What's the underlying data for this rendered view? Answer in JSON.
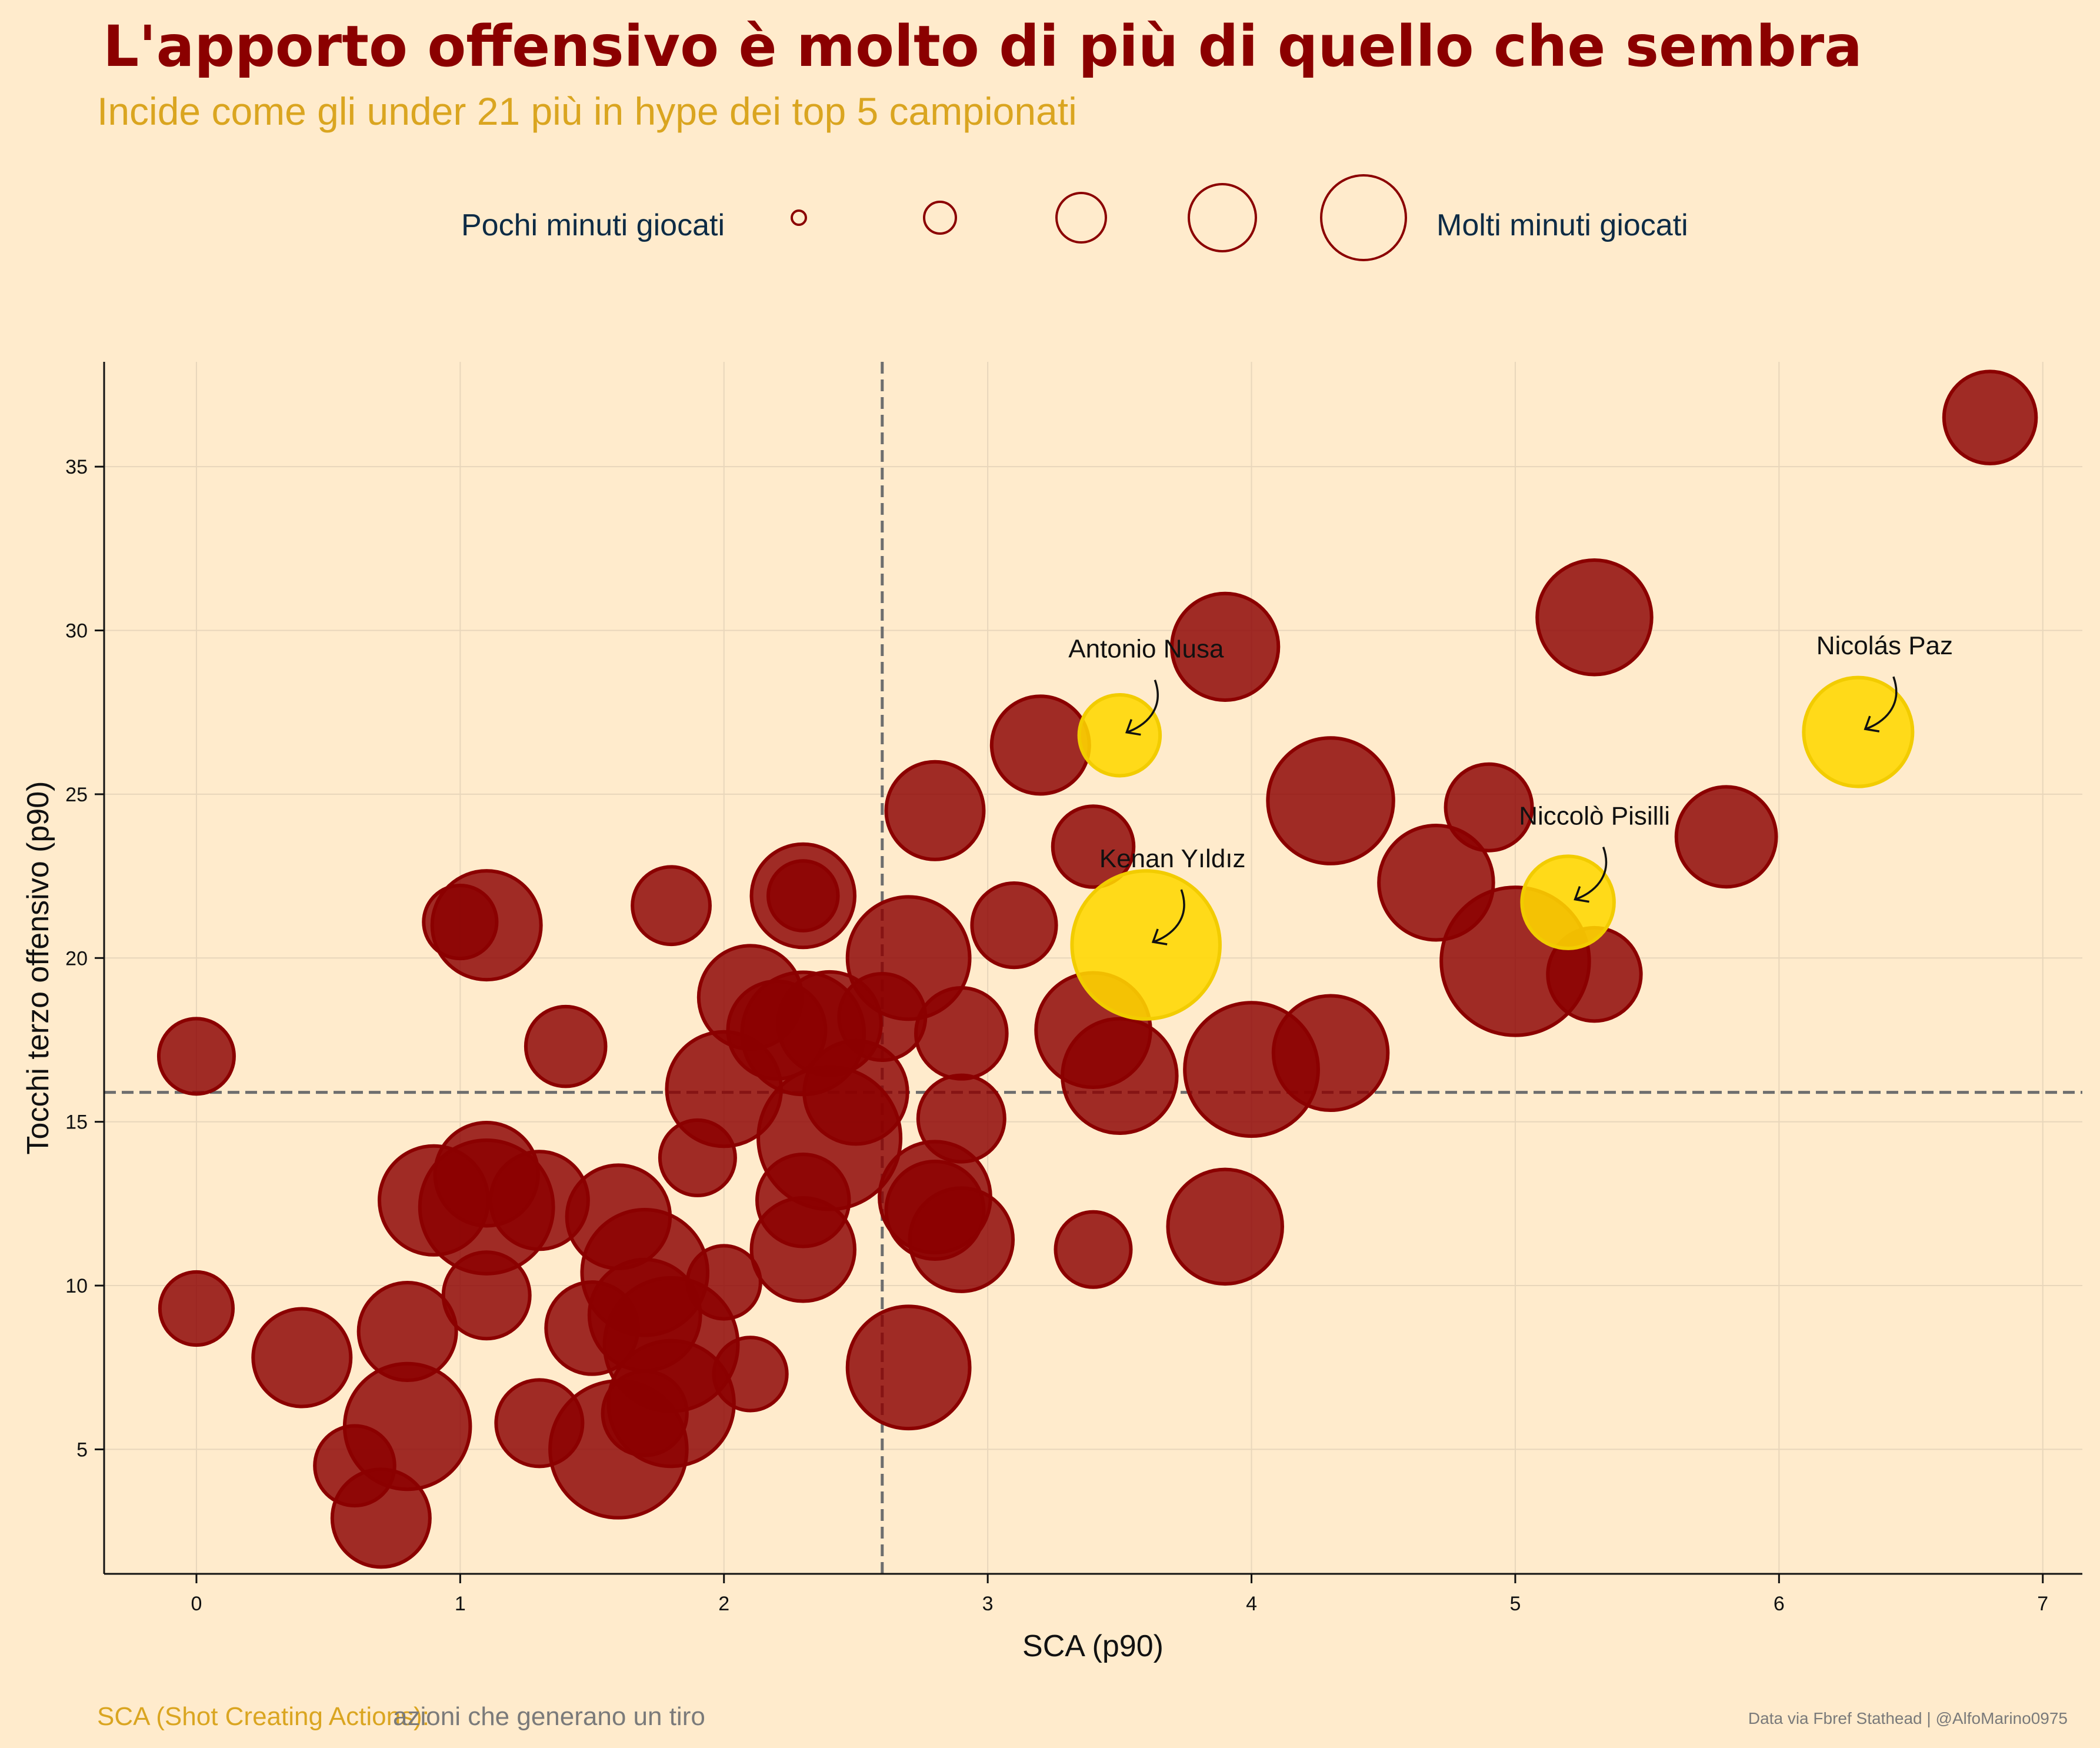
{
  "header": {
    "title": "L'apporto offensivo è molto di più di quello che sembra",
    "subtitle": "Incide come gli under 21 più in hype dei top 5 campionati"
  },
  "legend": {
    "left_label": "Pochi minuti giocati",
    "right_label": "Molti minuti giocati",
    "steps": 5,
    "circle_color": "#8b0000"
  },
  "footer": {
    "note_key": "SCA (Shot Creating Actions):",
    "note_value": "azioni che generano un tiro",
    "credit": "Data via Fbref Stathead | @AlfoMarino0975"
  },
  "colors": {
    "background": "#ffebcc",
    "bubble": "#8b0000",
    "highlight": "#ffd700",
    "reference_line": "#6e6e6e"
  },
  "chart_data": {
    "type": "scatter",
    "xlabel": "SCA (p90)",
    "ylabel": "Tocchi terzo offensivo (p90)",
    "xlim": [
      -0.35,
      7.15
    ],
    "ylim": [
      1.2,
      38.2
    ],
    "xticks": [
      0,
      1,
      2,
      3,
      4,
      5,
      6,
      7
    ],
    "yticks": [
      5,
      10,
      15,
      20,
      25,
      30,
      35
    ],
    "grid": true,
    "reference_lines": {
      "x": 2.6,
      "y": 15.9
    },
    "size_note": "s = relative minutes played (0-1)",
    "points": [
      {
        "x": 6.8,
        "y": 36.5,
        "s": 0.35
      },
      {
        "x": 5.3,
        "y": 30.4,
        "s": 0.55
      },
      {
        "x": 3.9,
        "y": 29.5,
        "s": 0.48
      },
      {
        "x": 3.2,
        "y": 26.5,
        "s": 0.4
      },
      {
        "x": 4.3,
        "y": 24.8,
        "s": 0.65
      },
      {
        "x": 4.9,
        "y": 24.6,
        "s": 0.3
      },
      {
        "x": 5.8,
        "y": 23.7,
        "s": 0.42
      },
      {
        "x": 2.8,
        "y": 24.5,
        "s": 0.4
      },
      {
        "x": 3.4,
        "y": 23.4,
        "s": 0.25
      },
      {
        "x": 4.7,
        "y": 22.3,
        "s": 0.55
      },
      {
        "x": 2.3,
        "y": 21.9,
        "s": 0.45
      },
      {
        "x": 2.3,
        "y": 21.9,
        "s": 0.15
      },
      {
        "x": 1.8,
        "y": 21.6,
        "s": 0.22
      },
      {
        "x": 1.1,
        "y": 21.0,
        "s": 0.5
      },
      {
        "x": 1.0,
        "y": 21.1,
        "s": 0.18
      },
      {
        "x": 3.1,
        "y": 21.0,
        "s": 0.28
      },
      {
        "x": 2.7,
        "y": 20.0,
        "s": 0.62
      },
      {
        "x": 5.0,
        "y": 19.9,
        "s": 0.85
      },
      {
        "x": 5.3,
        "y": 19.5,
        "s": 0.36
      },
      {
        "x": 2.1,
        "y": 18.8,
        "s": 0.45
      },
      {
        "x": 2.6,
        "y": 18.2,
        "s": 0.3
      },
      {
        "x": 2.4,
        "y": 18.0,
        "s": 0.45
      },
      {
        "x": 2.3,
        "y": 17.7,
        "s": 0.62
      },
      {
        "x": 2.2,
        "y": 17.8,
        "s": 0.4
      },
      {
        "x": 2.9,
        "y": 17.7,
        "s": 0.34
      },
      {
        "x": 3.4,
        "y": 17.8,
        "s": 0.55
      },
      {
        "x": 4.3,
        "y": 17.1,
        "s": 0.55
      },
      {
        "x": 0.0,
        "y": 17.0,
        "s": 0.2
      },
      {
        "x": 1.4,
        "y": 17.3,
        "s": 0.24
      },
      {
        "x": 4.0,
        "y": 16.6,
        "s": 0.72
      },
      {
        "x": 3.5,
        "y": 16.4,
        "s": 0.55
      },
      {
        "x": 2.0,
        "y": 16.0,
        "s": 0.55
      },
      {
        "x": 2.5,
        "y": 15.9,
        "s": 0.45
      },
      {
        "x": 2.9,
        "y": 15.1,
        "s": 0.3
      },
      {
        "x": 2.4,
        "y": 14.5,
        "s": 0.8
      },
      {
        "x": 1.9,
        "y": 13.9,
        "s": 0.2
      },
      {
        "x": 1.1,
        "y": 13.4,
        "s": 0.45
      },
      {
        "x": 0.9,
        "y": 12.6,
        "s": 0.5
      },
      {
        "x": 1.3,
        "y": 12.6,
        "s": 0.4
      },
      {
        "x": 1.1,
        "y": 12.4,
        "s": 0.72
      },
      {
        "x": 2.3,
        "y": 12.6,
        "s": 0.35
      },
      {
        "x": 2.8,
        "y": 12.7,
        "s": 0.52
      },
      {
        "x": 2.8,
        "y": 12.3,
        "s": 0.4
      },
      {
        "x": 1.6,
        "y": 12.1,
        "s": 0.45
      },
      {
        "x": 3.9,
        "y": 11.8,
        "s": 0.55
      },
      {
        "x": 2.9,
        "y": 11.4,
        "s": 0.45
      },
      {
        "x": 2.3,
        "y": 11.1,
        "s": 0.45
      },
      {
        "x": 3.4,
        "y": 11.1,
        "s": 0.2
      },
      {
        "x": 1.7,
        "y": 10.4,
        "s": 0.65
      },
      {
        "x": 2.0,
        "y": 10.1,
        "s": 0.18
      },
      {
        "x": 1.1,
        "y": 9.7,
        "s": 0.3
      },
      {
        "x": 0.0,
        "y": 9.3,
        "s": 0.18
      },
      {
        "x": 1.7,
        "y": 9.1,
        "s": 0.52
      },
      {
        "x": 1.5,
        "y": 8.7,
        "s": 0.35
      },
      {
        "x": 0.8,
        "y": 8.6,
        "s": 0.4
      },
      {
        "x": 1.8,
        "y": 8.2,
        "s": 0.72
      },
      {
        "x": 0.4,
        "y": 7.8,
        "s": 0.4
      },
      {
        "x": 2.7,
        "y": 7.5,
        "s": 0.62
      },
      {
        "x": 2.1,
        "y": 7.3,
        "s": 0.18
      },
      {
        "x": 1.8,
        "y": 6.4,
        "s": 0.65
      },
      {
        "x": 1.7,
        "y": 6.1,
        "s": 0.28
      },
      {
        "x": 1.3,
        "y": 5.8,
        "s": 0.3
      },
      {
        "x": 0.8,
        "y": 5.7,
        "s": 0.65
      },
      {
        "x": 1.6,
        "y": 5.0,
        "s": 0.75
      },
      {
        "x": 0.6,
        "y": 4.5,
        "s": 0.24
      },
      {
        "x": 0.7,
        "y": 2.9,
        "s": 0.4
      }
    ],
    "highlighted": [
      {
        "name": "Nicolás Paz",
        "x": 6.3,
        "y": 26.9,
        "s": 0.5
      },
      {
        "name": "Antonio Nusa",
        "x": 3.5,
        "y": 26.8,
        "s": 0.25
      },
      {
        "name": "Niccolò Pisilli",
        "x": 5.2,
        "y": 21.7,
        "s": 0.35
      },
      {
        "name": "Kenan Yıldız",
        "x": 3.6,
        "y": 20.4,
        "s": 0.85
      }
    ]
  }
}
